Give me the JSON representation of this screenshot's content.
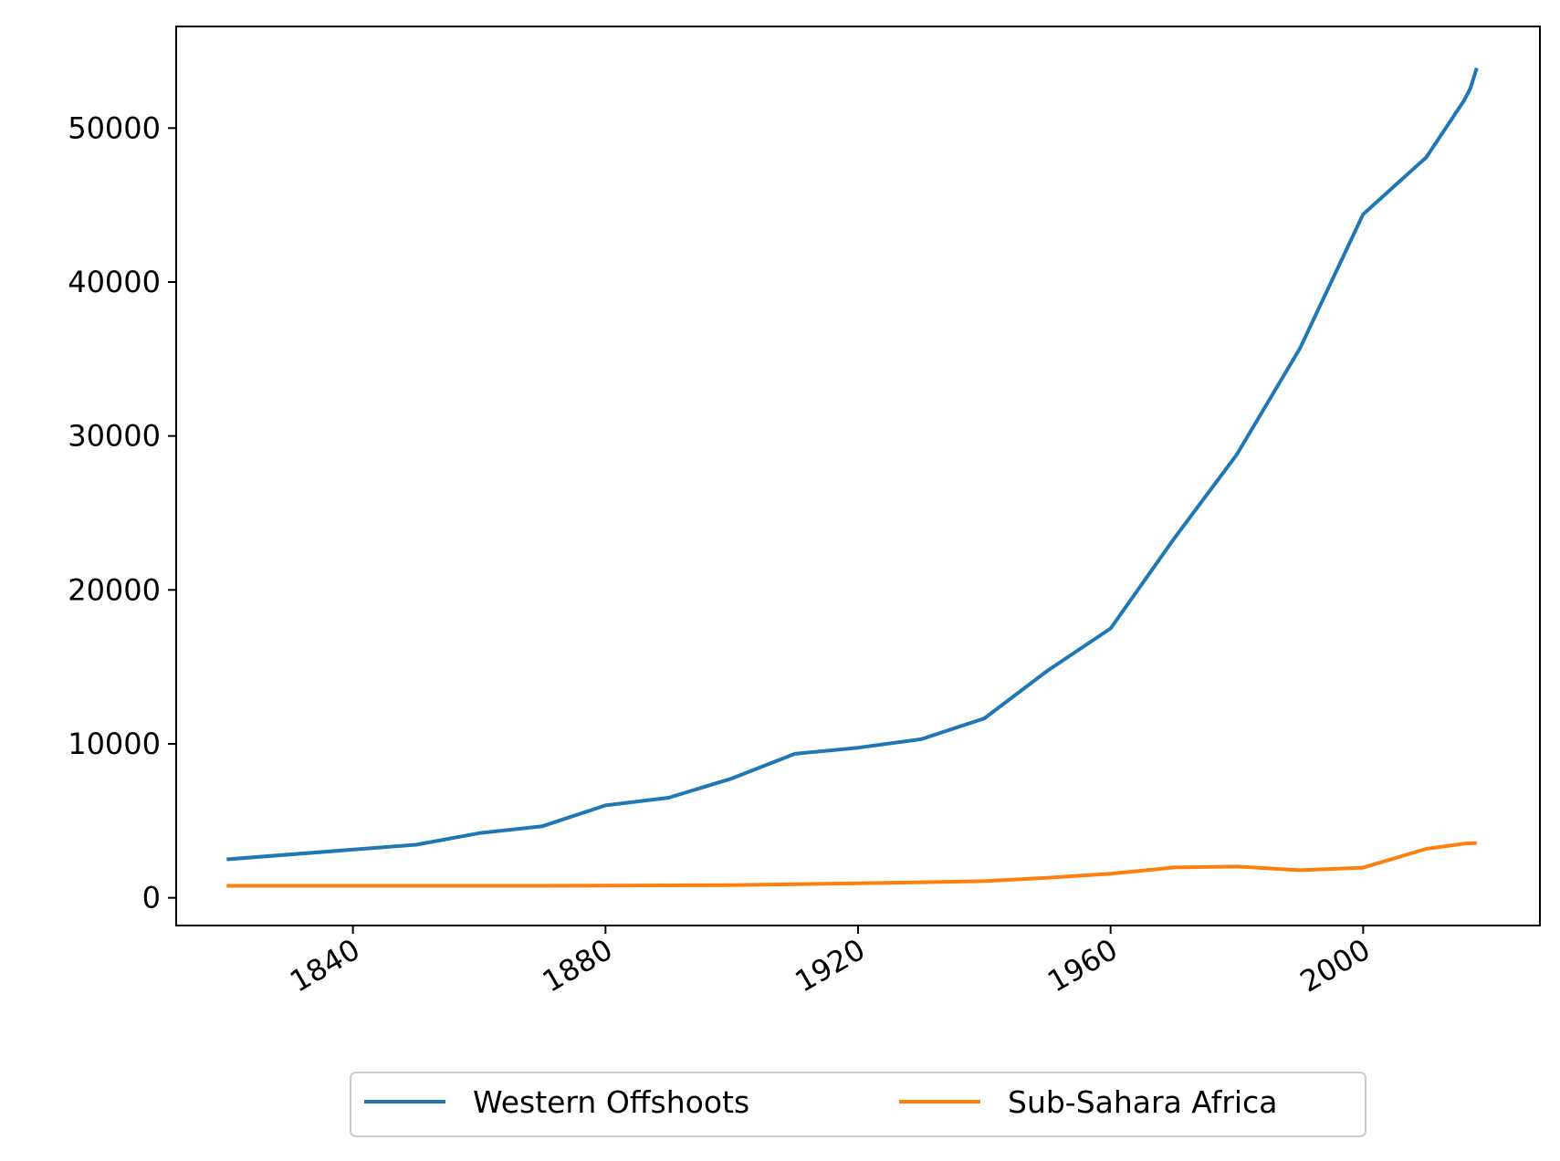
{
  "chart_data": {
    "type": "line",
    "title": "",
    "xlabel": "",
    "ylabel": "",
    "xlim": [
      1812,
      2028
    ],
    "ylim": [
      -1800,
      56600
    ],
    "x_ticks": [
      1840,
      1880,
      1920,
      1960,
      2000
    ],
    "x_tick_labels": [
      "1840",
      "1880",
      "1920",
      "1960",
      "2000"
    ],
    "y_ticks": [
      0,
      10000,
      20000,
      30000,
      40000,
      50000
    ],
    "y_tick_labels": [
      "0",
      "10000",
      "20000",
      "30000",
      "40000",
      "50000"
    ],
    "grid": false,
    "legend_position": "bottom-center-outside",
    "series": [
      {
        "name": "Western Offshoots",
        "color": "#1f77b4",
        "points": [
          [
            1820,
            2500
          ],
          [
            1850,
            3450
          ],
          [
            1860,
            4200
          ],
          [
            1870,
            4650
          ],
          [
            1880,
            6000
          ],
          [
            1890,
            6500
          ],
          [
            1900,
            7750
          ],
          [
            1910,
            9350
          ],
          [
            1920,
            9750
          ],
          [
            1930,
            10300
          ],
          [
            1940,
            11650
          ],
          [
            1950,
            14750
          ],
          [
            1960,
            17500
          ],
          [
            1970,
            23300
          ],
          [
            1980,
            28800
          ],
          [
            1990,
            35700
          ],
          [
            2000,
            44400
          ],
          [
            2010,
            48100
          ],
          [
            2016,
            51800
          ],
          [
            2017,
            52600
          ],
          [
            2018,
            53900
          ]
        ]
      },
      {
        "name": "Sub-Sahara Africa",
        "color": "#ff7f0e",
        "points": [
          [
            1820,
            780
          ],
          [
            1850,
            780
          ],
          [
            1870,
            780
          ],
          [
            1900,
            820
          ],
          [
            1920,
            940
          ],
          [
            1940,
            1080
          ],
          [
            1950,
            1300
          ],
          [
            1960,
            1560
          ],
          [
            1970,
            1970
          ],
          [
            1980,
            2030
          ],
          [
            1990,
            1790
          ],
          [
            2000,
            1960
          ],
          [
            2010,
            3180
          ],
          [
            2016,
            3520
          ],
          [
            2018,
            3560
          ]
        ]
      }
    ]
  }
}
